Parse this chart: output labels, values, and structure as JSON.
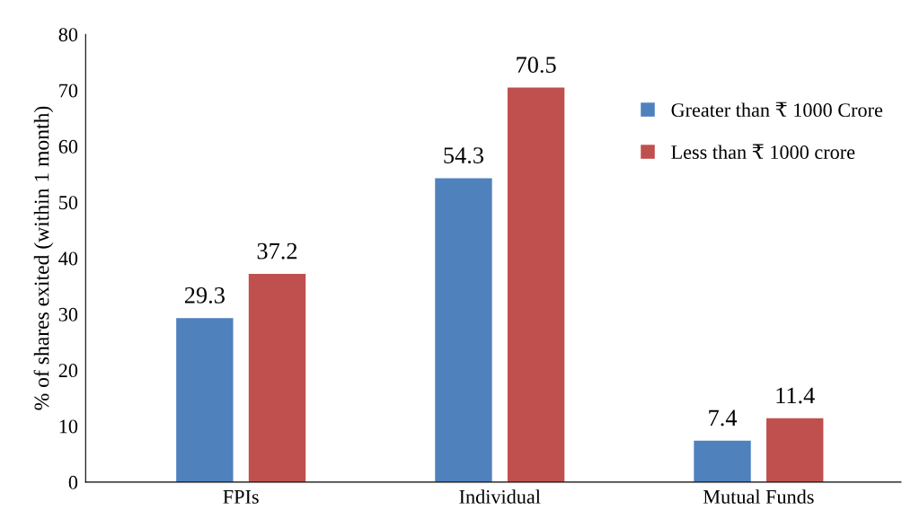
{
  "chart_data": {
    "type": "bar",
    "ylabel": "% of shares exited (within 1 month)",
    "categories": [
      "FPIs",
      "Individual",
      "Mutual Funds"
    ],
    "series": [
      {
        "name": "Greater than ₹ 1000 Crore",
        "color": "#4f81bd",
        "values": [
          29.3,
          54.3,
          7.4
        ]
      },
      {
        "name": "Less than ₹ 1000 crore",
        "color": "#c0504d",
        "values": [
          37.2,
          70.5,
          11.4
        ]
      }
    ],
    "ylim": [
      0,
      80
    ],
    "yticks": [
      0,
      10,
      20,
      30,
      40,
      50,
      60,
      70,
      80
    ],
    "data_labels": true,
    "grid": false,
    "legend": "right"
  }
}
